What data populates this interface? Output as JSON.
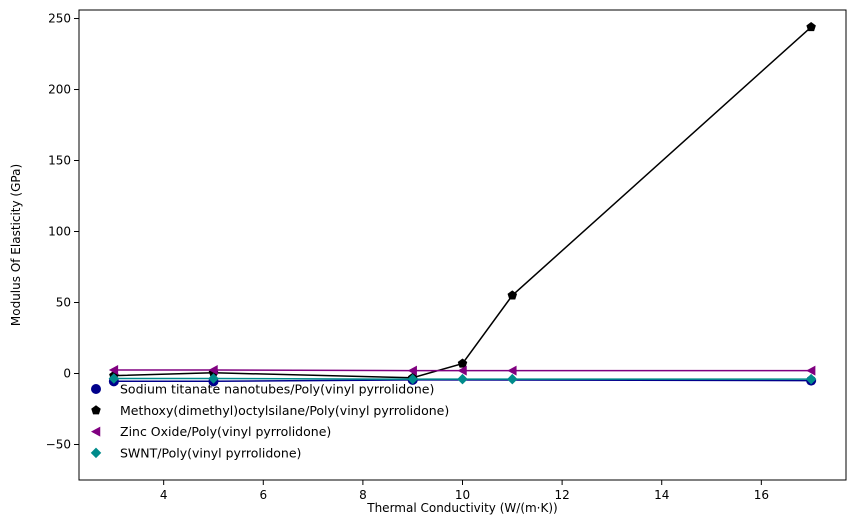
{
  "chart_data": {
    "type": "line",
    "xlabel": "Thermal Conductivity (W/(m·K))",
    "ylabel": "Modulus Of Elasticity (GPa)",
    "xlim": [
      2.3,
      17.7
    ],
    "ylim": [
      -75,
      256
    ],
    "xticks": [
      4,
      6,
      8,
      10,
      12,
      14,
      16
    ],
    "yticks": [
      -50,
      0,
      50,
      100,
      150,
      200,
      250
    ],
    "grid": false,
    "legend_position": "lower-left",
    "series": [
      {
        "name": "Sodium titanate nanotubes/Poly(vinyl pyrrolidone)",
        "color": "#00008b",
        "marker": "circle",
        "x": [
          3,
          5,
          9,
          17
        ],
        "y": [
          -5.5,
          -5.5,
          -4.5,
          -5
        ]
      },
      {
        "name": "Methoxy(dimethyl)octylsilane/Poly(vinyl pyrrolidone)",
        "color": "#000000",
        "marker": "pentagon",
        "x": [
          3,
          5,
          9,
          10,
          11,
          17
        ],
        "y": [
          -1.5,
          0.5,
          -3,
          7,
          55,
          244
        ]
      },
      {
        "name": "Zinc Oxide/Poly(vinyl pyrrolidone)",
        "color": "#800080",
        "marker": "triangle-left",
        "x": [
          3,
          5,
          9,
          10,
          11,
          17
        ],
        "y": [
          2.5,
          2.5,
          2,
          2,
          2,
          2
        ]
      },
      {
        "name": "SWNT/Poly(vinyl pyrrolidone)",
        "color": "#008b8b",
        "marker": "diamond",
        "x": [
          3,
          5,
          9,
          10,
          11,
          17
        ],
        "y": [
          -3.5,
          -3.5,
          -4,
          -4,
          -4,
          -4
        ]
      }
    ]
  }
}
